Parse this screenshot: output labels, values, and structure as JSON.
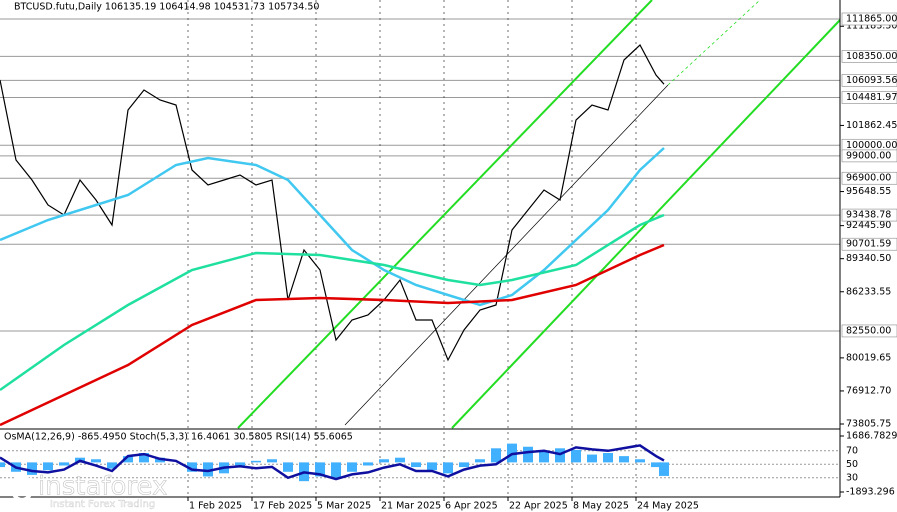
{
  "chart_data": [
    {
      "type": "line",
      "title": "BTCUSD.futu,Daily  106135.19 106414.98 104531.73 105734.50",
      "xlim": [
        "2024-12-16",
        "2025-07-14"
      ],
      "ylim": [
        73430,
        113650
      ],
      "yticks": [
        {
          "value": 111183.3,
          "label": "111183.30"
        },
        {
          "value": 101862.45,
          "label": "101862.45"
        },
        {
          "value": 95648.55,
          "label": "95648.55"
        },
        {
          "value": 92445.9,
          "label": "92445.90"
        },
        {
          "value": 89340.5,
          "label": "89340.50"
        },
        {
          "value": 86233.55,
          "label": "86233.55"
        },
        {
          "value": 80019.65,
          "label": "80019.65"
        },
        {
          "value": 76912.7,
          "label": "76912.70"
        },
        {
          "value": 73805.75,
          "label": "73805.75"
        }
      ],
      "levels": [
        {
          "value": 111865,
          "label": "111865.00"
        },
        {
          "value": 108350,
          "label": "108350.00"
        },
        {
          "value": 106093.56,
          "label": "106093.56"
        },
        {
          "value": 104481.97,
          "label": "104481.97"
        },
        {
          "value": 100000,
          "label": "100000.00"
        },
        {
          "value": 99000,
          "label": "99000.00"
        },
        {
          "value": 96900,
          "label": "96900.00"
        },
        {
          "value": 93438.78,
          "label": "93438.78"
        },
        {
          "value": 90701.59,
          "label": "90701.59"
        },
        {
          "value": 82550,
          "label": "82550.00"
        }
      ],
      "series": [
        {
          "color": "#000000",
          "x": [
            "2024-12-16",
            "2024-12-20",
            "2024-12-24",
            "2024-12-28",
            "2025-01-01",
            "2025-01-05",
            "2025-01-09",
            "2025-01-13",
            "2025-01-17",
            "2025-01-21",
            "2025-01-25",
            "2025-01-29",
            "2025-02-02",
            "2025-02-06",
            "2025-02-10",
            "2025-02-14",
            "2025-02-18",
            "2025-02-22",
            "2025-02-26",
            "2025-03-02",
            "2025-03-06",
            "2025-03-10",
            "2025-03-14",
            "2025-03-18",
            "2025-03-22",
            "2025-03-26",
            "2025-03-30",
            "2025-04-03",
            "2025-04-07",
            "2025-04-11",
            "2025-04-15",
            "2025-04-19",
            "2025-04-23",
            "2025-04-27",
            "2025-05-01",
            "2025-05-05",
            "2025-05-09",
            "2025-05-13",
            "2025-05-17",
            "2025-05-21",
            "2025-05-25",
            "2025-05-29",
            "2025-05-31"
          ],
          "values": [
            106133,
            98615,
            96736,
            94387,
            93447,
            96736,
            94857,
            92507,
            103314,
            105193,
            104254,
            103784,
            97676,
            96266,
            96736,
            97206,
            96266,
            96736,
            85459,
            90158,
            88278,
            81700,
            83580,
            84049,
            85459,
            87339,
            83580,
            83580,
            79822,
            82641,
            84520,
            84990,
            92038,
            93917,
            95797,
            94857,
            102374,
            103784,
            103314,
            108012,
            109422,
            106603,
            105734.5
          ]
        },
        {
          "color": "#40c8f0",
          "x": [
            "2024-12-16",
            "2024-12-28",
            "2025-01-09",
            "2025-01-17",
            "2025-01-29",
            "2025-02-06",
            "2025-02-18",
            "2025-02-26",
            "2025-03-06",
            "2025-03-14",
            "2025-03-22",
            "2025-03-30",
            "2025-04-07",
            "2025-04-15",
            "2025-04-23",
            "2025-05-01",
            "2025-05-09",
            "2025-05-17",
            "2025-05-25",
            "2025-05-31"
          ],
          "values": [
            91098,
            92977,
            94387,
            95326,
            98145,
            98803,
            98145,
            96736,
            93447,
            90158,
            88279,
            86869,
            85929,
            84990,
            85929,
            88279,
            91098,
            93917,
            97676,
            99743
          ]
        },
        {
          "color": "#20e0a0",
          "x": [
            "2024-12-16",
            "2025-01-01",
            "2025-01-17",
            "2025-02-02",
            "2025-02-18",
            "2025-03-06",
            "2025-03-22",
            "2025-04-07",
            "2025-04-15",
            "2025-04-23",
            "2025-05-09",
            "2025-05-25",
            "2025-05-31"
          ],
          "values": [
            77002,
            81231,
            84990,
            88279,
            89876,
            89688,
            88748,
            87339,
            86869,
            87339,
            88748,
            92507,
            93447
          ]
        },
        {
          "color": "#e00000",
          "x": [
            "2024-12-16",
            "2025-01-01",
            "2025-01-17",
            "2025-02-02",
            "2025-02-18",
            "2025-03-06",
            "2025-03-22",
            "2025-04-07",
            "2025-04-23",
            "2025-05-09",
            "2025-05-25",
            "2025-05-31"
          ],
          "values": [
            73713,
            76532,
            79351,
            83110,
            85459,
            85647,
            85459,
            85178,
            85459,
            86869,
            89688,
            90628
          ]
        }
      ]
    },
    {
      "type": "line",
      "title": "OsMA(12,26,9) -865.4950  Stoch(5,3,3) 16.4061 30.5805  RSI(14) 55.6065",
      "xlim": [
        "2024-12-16",
        "2025-07-14"
      ],
      "xticks": [
        {
          "value": "2025-02-01",
          "label": "1 Feb 2025"
        },
        {
          "value": "2025-02-17",
          "label": "17 Feb 2025"
        },
        {
          "value": "2025-03-05",
          "label": "5 Mar 2025"
        },
        {
          "value": "2025-03-21",
          "label": "21 Mar 2025"
        },
        {
          "value": "2025-04-06",
          "label": "6 Apr 2025"
        },
        {
          "value": "2025-04-22",
          "label": "22 Apr 2025"
        },
        {
          "value": "2025-05-08",
          "label": "8 May 2025"
        },
        {
          "value": "2025-05-24",
          "label": "24 May 2025"
        }
      ],
      "ylim": [
        0,
        100
      ],
      "yticks": [
        70,
        50,
        30
      ],
      "y2lim": [
        -1893.296,
        1686.7829
      ],
      "y2ticks": [
        1686.7829,
        -1893.296
      ],
      "series": [
        {
          "axis": "y2",
          "style": "histogram",
          "color": "#40b0ff",
          "x": [
            "2024-12-16",
            "2024-12-20",
            "2024-12-24",
            "2024-12-28",
            "2025-01-01",
            "2025-01-05",
            "2025-01-09",
            "2025-01-13",
            "2025-01-17",
            "2025-01-21",
            "2025-01-25",
            "2025-01-29",
            "2025-02-02",
            "2025-02-06",
            "2025-02-10",
            "2025-02-14",
            "2025-02-18",
            "2025-02-22",
            "2025-02-26",
            "2025-03-02",
            "2025-03-06",
            "2025-03-10",
            "2025-03-14",
            "2025-03-18",
            "2025-03-22",
            "2025-03-26",
            "2025-03-30",
            "2025-04-03",
            "2025-04-07",
            "2025-04-11",
            "2025-04-15",
            "2025-04-19",
            "2025-04-23",
            "2025-04-27",
            "2025-05-01",
            "2025-05-05",
            "2025-05-09",
            "2025-05-13",
            "2025-05-17",
            "2025-05-21",
            "2025-05-25",
            "2025-05-29",
            "2025-05-31"
          ],
          "values": [
            -300,
            -600,
            -800,
            -500,
            -200,
            300,
            200,
            -400,
            400,
            600,
            300,
            0,
            -600,
            -900,
            -700,
            -300,
            100,
            200,
            -600,
            -1200,
            -900,
            -1000,
            -600,
            -200,
            200,
            300,
            -300,
            -500,
            -700,
            -300,
            200,
            900,
            1200,
            1000,
            700,
            900,
            800,
            500,
            600,
            400,
            200,
            -300,
            -865.495
          ]
        },
        {
          "color": "#1010a0",
          "x": [
            "2024-12-16",
            "2024-12-20",
            "2024-12-24",
            "2024-12-28",
            "2025-01-01",
            "2025-01-05",
            "2025-01-09",
            "2025-01-13",
            "2025-01-17",
            "2025-01-21",
            "2025-01-25",
            "2025-01-29",
            "2025-02-02",
            "2025-02-06",
            "2025-02-10",
            "2025-02-14",
            "2025-02-18",
            "2025-02-22",
            "2025-02-26",
            "2025-03-02",
            "2025-03-06",
            "2025-03-10",
            "2025-03-14",
            "2025-03-18",
            "2025-03-22",
            "2025-03-26",
            "2025-03-30",
            "2025-04-03",
            "2025-04-07",
            "2025-04-11",
            "2025-04-15",
            "2025-04-19",
            "2025-04-23",
            "2025-04-27",
            "2025-05-01",
            "2025-05-05",
            "2025-05-09",
            "2025-05-13",
            "2025-05-17",
            "2025-05-21",
            "2025-05-25",
            "2025-05-29",
            "2025-05-31"
          ],
          "values": [
            60,
            45,
            40,
            38,
            42,
            55,
            48,
            40,
            62,
            65,
            58,
            55,
            42,
            40,
            45,
            47,
            44,
            46,
            30,
            38,
            35,
            28,
            35,
            38,
            45,
            50,
            40,
            40,
            32,
            42,
            48,
            50,
            65,
            68,
            70,
            65,
            75,
            72,
            70,
            74,
            78,
            62,
            55.6065
          ]
        }
      ]
    }
  ],
  "watermark": {
    "brand": "instaforex",
    "tagline": "Instant Forex Trading"
  }
}
